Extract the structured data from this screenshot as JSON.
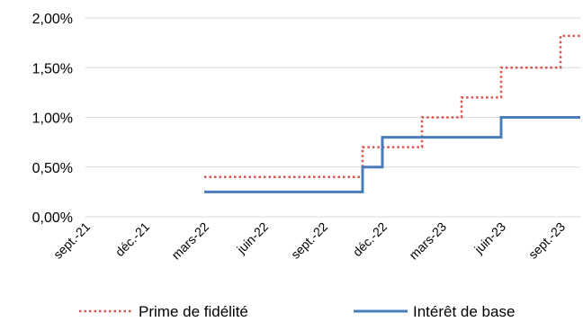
{
  "chart_data": {
    "type": "line",
    "step": true,
    "x_ticks": [
      "sept.-21",
      "déc.-21",
      "mars-22",
      "juin-22",
      "sept.-22",
      "déc.-22",
      "mars-23",
      "juin-23",
      "sept.-23"
    ],
    "y_ticks": [
      "0,00%",
      "0,50%",
      "1,00%",
      "1,50%",
      "2,00%"
    ],
    "ylim": [
      0,
      2.0
    ],
    "grid": "horizontal",
    "legend_position": "bottom",
    "series": [
      {
        "name": "Prime de fidélité",
        "color": "#d9534f",
        "style": "dotted",
        "points": [
          {
            "x": "2022-03",
            "y": 0.4
          },
          {
            "x": "2022-11",
            "y": 0.7
          },
          {
            "x": "2023-02",
            "y": 1.0
          },
          {
            "x": "2023-04",
            "y": 1.2
          },
          {
            "x": "2023-06",
            "y": 1.5
          },
          {
            "x": "2023-09",
            "y": 1.82
          }
        ],
        "end": "2023-10"
      },
      {
        "name": "Intérêt de base",
        "color": "#4a7ebb",
        "style": "solid",
        "points": [
          {
            "x": "2022-03",
            "y": 0.25
          },
          {
            "x": "2022-11",
            "y": 0.5
          },
          {
            "x": "2022-12",
            "y": 0.8
          },
          {
            "x": "2023-06",
            "y": 1.0
          }
        ],
        "end": "2023-10"
      }
    ]
  }
}
